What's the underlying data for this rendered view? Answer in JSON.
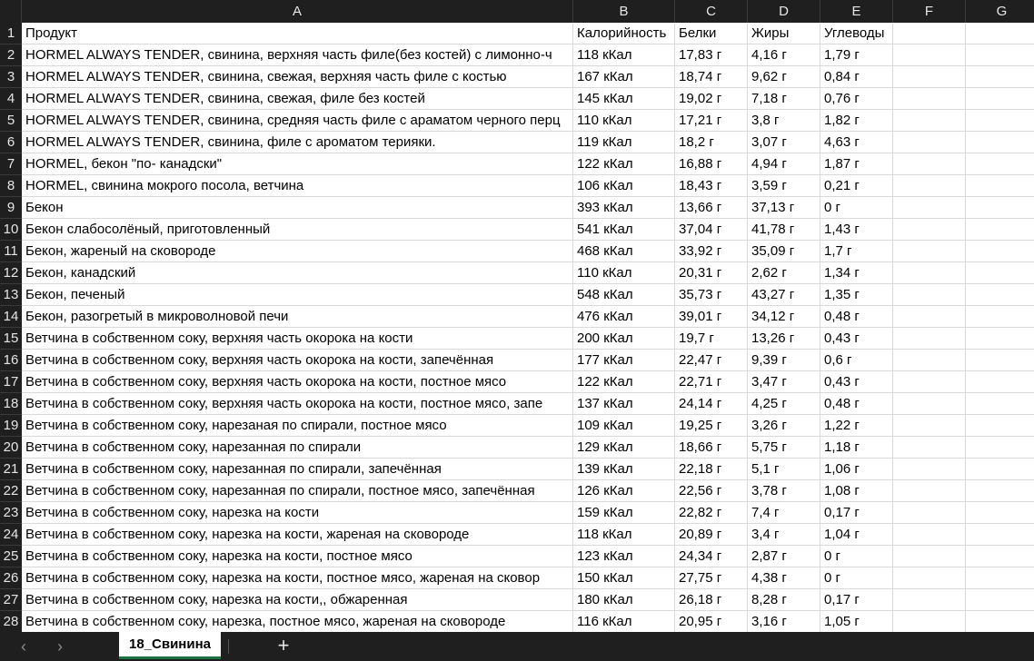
{
  "columns": [
    "A",
    "B",
    "C",
    "D",
    "E",
    "F",
    "G"
  ],
  "header": {
    "row_number": "1",
    "product": "Продукт",
    "calories": "Калорийность",
    "protein": "Белки",
    "fat": "Жиры",
    "carbs": "Углеводы"
  },
  "rows": [
    {
      "n": "2",
      "product": "HORMEL ALWAYS TENDER, свинина, верхняя часть филе(без костей) с лимонно-ч",
      "calories": "118 кКал",
      "protein": "17,83 г",
      "fat": "4,16 г",
      "carbs": "1,79 г"
    },
    {
      "n": "3",
      "product": "HORMEL ALWAYS TENDER, свинина, свежая, верхняя часть филе с костью",
      "calories": "167 кКал",
      "protein": "18,74 г",
      "fat": "9,62 г",
      "carbs": "0,84 г"
    },
    {
      "n": "4",
      "product": "HORMEL ALWAYS TENDER, свинина, свежая, филе без костей",
      "calories": "145 кКал",
      "protein": "19,02 г",
      "fat": "7,18 г",
      "carbs": "0,76 г"
    },
    {
      "n": "5",
      "product": "HORMEL ALWAYS TENDER, свинина, средняя часть филе с араматом черного перц",
      "calories": "110 кКал",
      "protein": "17,21 г",
      "fat": "3,8 г",
      "carbs": "1,82 г"
    },
    {
      "n": "6",
      "product": "HORMEL ALWAYS TENDER, свинина, филе с ароматом терияки.",
      "calories": "119 кКал",
      "protein": "18,2 г",
      "fat": "3,07 г",
      "carbs": "4,63 г"
    },
    {
      "n": "7",
      "product": "HORMEL, бекон \"по- канадски\"",
      "calories": "122 кКал",
      "protein": "16,88 г",
      "fat": "4,94 г",
      "carbs": "1,87 г"
    },
    {
      "n": "8",
      "product": "HORMEL, свинина мокрого посола, ветчина",
      "calories": "106 кКал",
      "protein": "18,43 г",
      "fat": "3,59 г",
      "carbs": "0,21 г"
    },
    {
      "n": "9",
      "product": "Бекон",
      "calories": "393 кКал",
      "protein": "13,66 г",
      "fat": "37,13 г",
      "carbs": "0 г"
    },
    {
      "n": "10",
      "product": "Бекон слабосолёный, приготовленный",
      "calories": "541 кКал",
      "protein": "37,04 г",
      "fat": "41,78 г",
      "carbs": "1,43 г"
    },
    {
      "n": "11",
      "product": "Бекон, жареный на сковороде",
      "calories": "468 кКал",
      "protein": "33,92 г",
      "fat": "35,09 г",
      "carbs": "1,7 г"
    },
    {
      "n": "12",
      "product": "Бекон, канадский",
      "calories": "110 кКал",
      "protein": "20,31 г",
      "fat": "2,62 г",
      "carbs": "1,34 г"
    },
    {
      "n": "13",
      "product": "Бекон, печеный",
      "calories": "548 кКал",
      "protein": "35,73 г",
      "fat": "43,27 г",
      "carbs": "1,35 г"
    },
    {
      "n": "14",
      "product": "Бекон, разогретый в микроволновой печи",
      "calories": "476 кКал",
      "protein": "39,01 г",
      "fat": "34,12 г",
      "carbs": "0,48 г"
    },
    {
      "n": "15",
      "product": "Ветчина в собственном соку, верхняя часть окорока на кости",
      "calories": "200 кКал",
      "protein": "19,7 г",
      "fat": "13,26 г",
      "carbs": "0,43 г"
    },
    {
      "n": "16",
      "product": "Ветчина в собственном соку, верхняя часть окорока на кости, запечённая",
      "calories": "177 кКал",
      "protein": "22,47 г",
      "fat": "9,39 г",
      "carbs": "0,6 г"
    },
    {
      "n": "17",
      "product": "Ветчина в собственном соку, верхняя часть окорока на кости, постное мясо",
      "calories": "122 кКал",
      "protein": "22,71 г",
      "fat": "3,47 г",
      "carbs": "0,43 г"
    },
    {
      "n": "18",
      "product": "Ветчина в собственном соку, верхняя часть окорока на кости, постное мясо, запе",
      "calories": "137 кКал",
      "protein": "24,14 г",
      "fat": "4,25 г",
      "carbs": "0,48 г"
    },
    {
      "n": "19",
      "product": "Ветчина в собственном соку, нарезаная по спирали, постное мясо",
      "calories": "109 кКал",
      "protein": "19,25 г",
      "fat": "3,26 г",
      "carbs": "1,22 г"
    },
    {
      "n": "20",
      "product": "Ветчина в собственном соку, нарезанная по спирали",
      "calories": "129 кКал",
      "protein": "18,66 г",
      "fat": "5,75 г",
      "carbs": "1,18 г"
    },
    {
      "n": "21",
      "product": "Ветчина в собственном соку, нарезанная по спирали, запечённая",
      "calories": "139 кКал",
      "protein": "22,18 г",
      "fat": "5,1 г",
      "carbs": "1,06 г"
    },
    {
      "n": "22",
      "product": "Ветчина в собственном соку, нарезанная по спирали, постное мясо, запечённая",
      "calories": "126 кКал",
      "protein": "22,56 г",
      "fat": "3,78 г",
      "carbs": "1,08 г"
    },
    {
      "n": "23",
      "product": "Ветчина в собственном соку, нарезка на кости",
      "calories": "159 кКал",
      "protein": "22,82 г",
      "fat": "7,4 г",
      "carbs": "0,17 г"
    },
    {
      "n": "24",
      "product": "Ветчина в собственном соку, нарезка на кости, жареная на сковороде",
      "calories": "118 кКал",
      "protein": "20,89 г",
      "fat": "3,4 г",
      "carbs": "1,04 г"
    },
    {
      "n": "25",
      "product": "Ветчина в собственном соку, нарезка на кости, постное мясо",
      "calories": "123 кКал",
      "protein": "24,34 г",
      "fat": "2,87 г",
      "carbs": "0 г"
    },
    {
      "n": "26",
      "product": "Ветчина в собственном соку, нарезка на кости, постное мясо, жареная на сковор",
      "calories": "150 кКал",
      "protein": "27,75 г",
      "fat": "4,38 г",
      "carbs": "0 г"
    },
    {
      "n": "27",
      "product": "Ветчина в собственном соку, нарезка на кости,, обжаренная",
      "calories": "180 кКал",
      "protein": "26,18 г",
      "fat": "8,28 г",
      "carbs": "0,17 г"
    },
    {
      "n": "28",
      "product": "Ветчина в собственном соку, нарезка, постное мясо, жареная на сковороде",
      "calories": "116 кКал",
      "protein": "20,95 г",
      "fat": "3,16 г",
      "carbs": "1,05 г"
    }
  ],
  "tabs": {
    "prev_icon": "chevron-left-icon",
    "next_icon": "chevron-right-icon",
    "prev_glyph": "‹",
    "next_glyph": "›",
    "active_sheet": "18_Свинина",
    "add_glyph": "+",
    "add_icon": "plus-icon"
  },
  "colors": {
    "header_bg": "#1f1f1f",
    "header_text": "#e6e6e6",
    "grid_line": "#d9d9d9",
    "active_tab_accent": "#1e7145"
  }
}
